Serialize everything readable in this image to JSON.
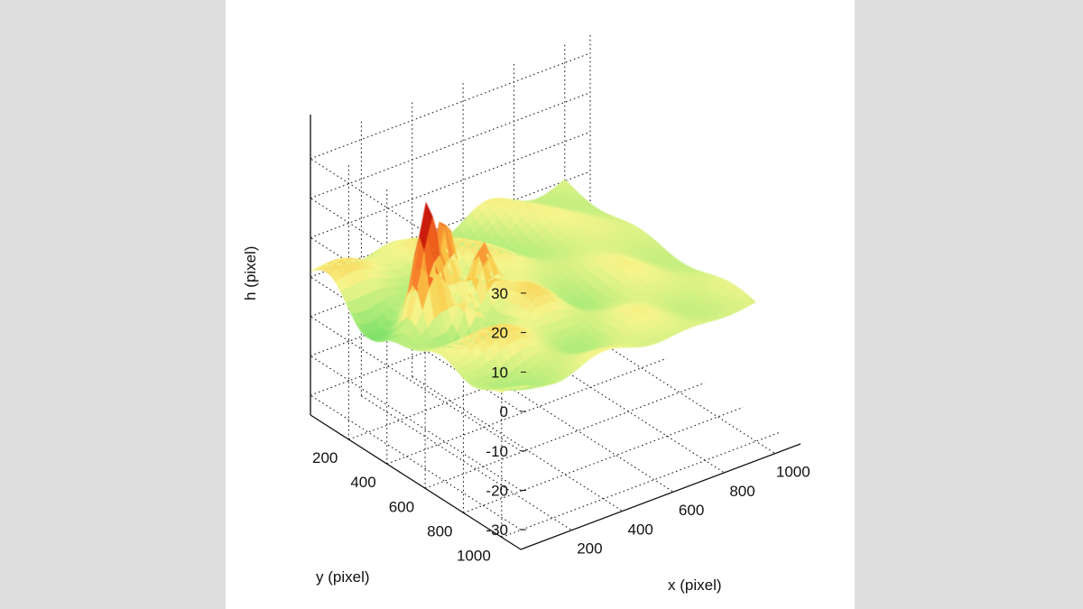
{
  "chart_data": {
    "type": "surface",
    "colormap": "green-yellow-red",
    "xlabel": "x (pixel)",
    "ylabel": "y (pixel)",
    "zlabel": "h (pixel)",
    "xlim": [
      0,
      1100
    ],
    "ylim": [
      0,
      1100
    ],
    "zlim": [
      -35,
      35
    ],
    "x_ticks": [
      "200",
      "400",
      "600",
      "800",
      "1000"
    ],
    "y_ticks": [
      "200",
      "400",
      "600",
      "800",
      "1000"
    ],
    "z_ticks": [
      "30",
      "20",
      "10",
      "0",
      "-10",
      "-20",
      "-30"
    ],
    "grid": true,
    "description": "",
    "peaks": [
      {
        "x": 160,
        "y": 400,
        "h": 26
      },
      {
        "x": 300,
        "y": 300,
        "h": 26
      },
      {
        "x": 360,
        "y": 420,
        "h": 18
      },
      {
        "x": 240,
        "y": 520,
        "h": 16
      }
    ]
  }
}
